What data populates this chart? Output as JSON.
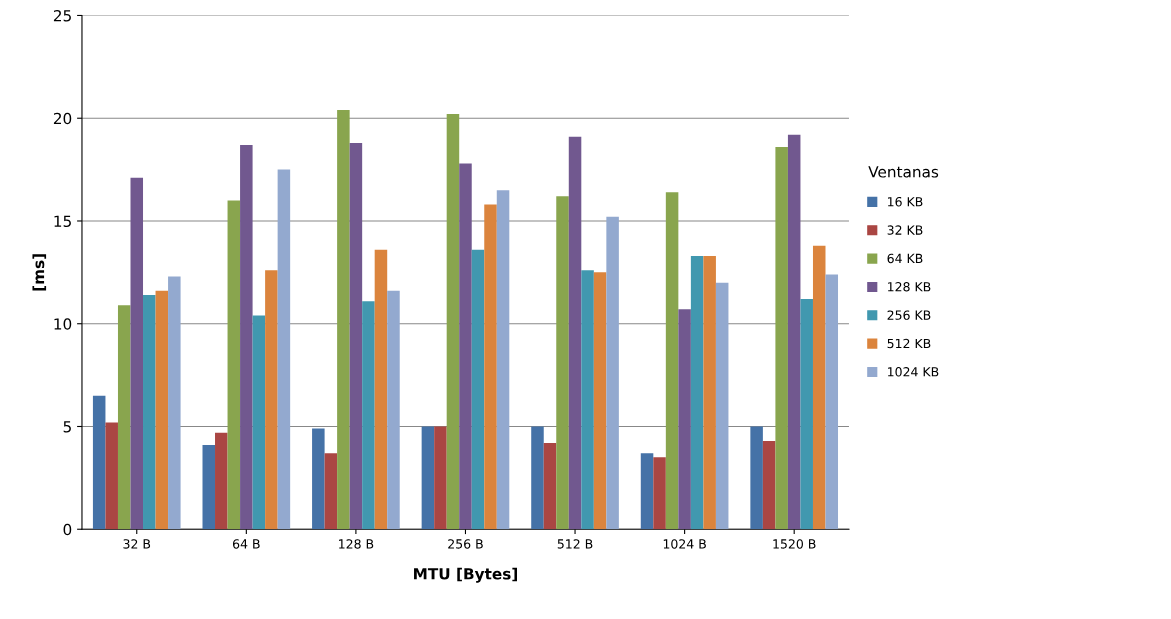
{
  "chart_data": {
    "type": "bar",
    "xlabel": "MTU [Bytes]",
    "ylabel": "[ms]",
    "legend_title": "Ventanas",
    "categories": [
      "32 B",
      "64 B",
      "128 B",
      "256 B",
      "512 B",
      "1024 B",
      "1520 B"
    ],
    "series": [
      {
        "name": "16 KB",
        "color": "#4572a7",
        "values": [
          6.5,
          4.1,
          4.9,
          5.0,
          5.0,
          3.7,
          5.0
        ]
      },
      {
        "name": "32 KB",
        "color": "#aa4643",
        "values": [
          5.2,
          4.7,
          3.7,
          5.0,
          4.2,
          3.5,
          4.3
        ]
      },
      {
        "name": "64 KB",
        "color": "#89a54e",
        "values": [
          10.9,
          16.0,
          20.4,
          20.2,
          16.2,
          16.4,
          18.6
        ]
      },
      {
        "name": "128 KB",
        "color": "#71588f",
        "values": [
          17.1,
          18.7,
          18.8,
          17.8,
          19.1,
          10.7,
          19.2
        ]
      },
      {
        "name": "256 KB",
        "color": "#4198af",
        "values": [
          11.4,
          10.4,
          11.1,
          13.6,
          12.6,
          13.3,
          11.2
        ]
      },
      {
        "name": "512 KB",
        "color": "#db843d",
        "values": [
          11.6,
          12.6,
          13.6,
          15.8,
          12.5,
          13.3,
          13.8
        ]
      },
      {
        "name": "1024 KB",
        "color": "#93a9cf",
        "values": [
          12.3,
          17.5,
          11.6,
          16.5,
          15.2,
          12.0,
          12.4
        ]
      }
    ],
    "ylim": [
      0,
      25
    ],
    "yticks": [
      0,
      5,
      10,
      15,
      20,
      25
    ],
    "grid": "y",
    "legend": "right"
  }
}
